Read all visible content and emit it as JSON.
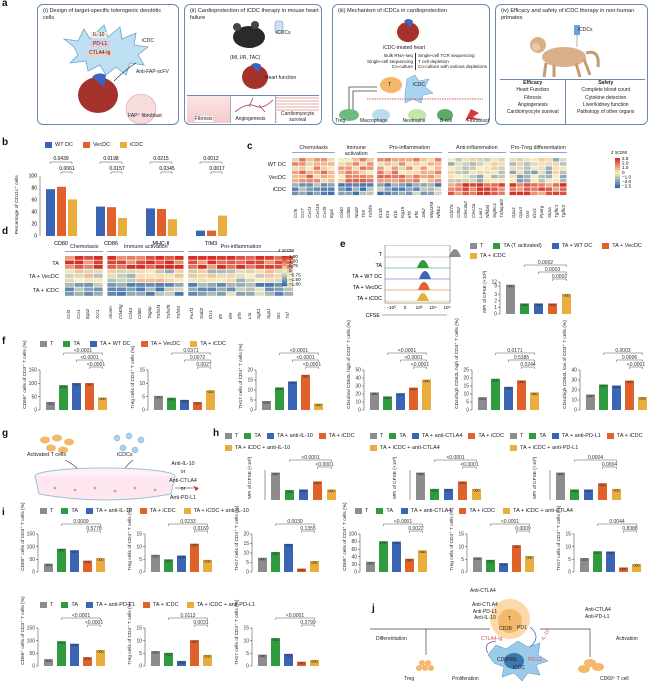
{
  "panels": {
    "a": {
      "label": "a",
      "i": {
        "title": "(i) Design of target-specific tolerogenic dendritic cells",
        "il10": "IL-10",
        "pdl1": "PD-L1",
        "ctla4": "CTLA4-Ig",
        "icdc": "iCDC",
        "scfv": "Anti-FAP-scFV",
        "fibroblast": "FAP⁺ fibroblast"
      },
      "ii": {
        "title": "(ii) Cardioprotection of iCDC therapy in mouse heart failure",
        "icdcs": "iCDCs",
        "models": "(MI, I/R, TAC)",
        "heart_function": "Heart function",
        "outcomes": [
          "Fibrosis",
          "Angiogenesis",
          "Cardiomyocyte survival"
        ]
      },
      "iii": {
        "title": "(iii) Mechanism of iCDCs in cardioprotection",
        "heart": "iCDC-treated heart",
        "methods_left": [
          "Bulk RNA-seq",
          "Single-cell sequencing",
          "Co-culture"
        ],
        "methods_right": [
          "Single-cell TCR sequencing",
          "T cell depletion",
          "Co-culture with various depletions"
        ],
        "t": "T",
        "icdc": "iCDC",
        "targets": [
          "Treg",
          "Macrophage",
          "Neutrophil",
          "B cell",
          "Fibroblast"
        ]
      },
      "iv": {
        "title": "(iv) Efficacy and safety of iCDC therapy in non-human primates",
        "icdcs": "iCDCs",
        "efficacy_head": "Efficacy",
        "efficacy": [
          "Heart Function",
          "Fibrosis",
          "Angiogenesis",
          "Cardiomyocyte survival"
        ],
        "safety_head": "Safety",
        "safety": [
          "Complete blood count",
          "Cytokine detection",
          "Liver/kidney function",
          "Pathology of other organs"
        ]
      }
    },
    "b": {
      "label": "b",
      "legend": [
        "WT DC",
        "VecDC",
        "iCDC"
      ],
      "ylabel": "Percentage of CD11c⁺ cells"
    },
    "c": {
      "label": "c",
      "groups": [
        "Chemotaxis",
        "Immune activation",
        "Pro-inflammation",
        "Anti-inflammation",
        "Pro-Treg differentiation"
      ],
      "rows": [
        "WT DC",
        "VecDC",
        "iCDC"
      ],
      "zscore": "z score",
      "scale": [
        "2.5",
        "2.0",
        "1.0",
        "0",
        "−1.0",
        "−2.0",
        "−2.5"
      ],
      "genes": [
        "Ccl5",
        "Ccr7",
        "Cxcl1",
        "Cxcl16",
        "Cxcl5",
        "Itgal",
        "Cd40",
        "Cd86",
        "Nod2",
        "Tlr9",
        "Tnfsf9",
        "Il12b",
        "Il15",
        "Il1b",
        "Isg15",
        "Irf5",
        "Irf8",
        "Jak2",
        "Map3k8",
        "Nfkb1",
        "Cd276",
        "Cd52",
        "Clec4a2",
        "Clec2a",
        "Lair1",
        "Nfkbid",
        "Siglec1",
        "Tnfaip8l2",
        "Gpx1",
        "Gpx3",
        "Gsr",
        "Il1rl1",
        "Pparg",
        "Sirpa",
        "Tgfbr1",
        "Tgfbr2"
      ]
    },
    "d": {
      "label": "d",
      "groups": [
        "Chemotaxis",
        "Immune activation",
        "Pro-inflammation"
      ],
      "rows": [
        "TA",
        "TA + VecDC",
        "TA + iCDC"
      ],
      "zscore": "z score",
      "scale": [
        "1.80",
        "1.50",
        "0.75",
        "0",
        "−0.75",
        "−1.50",
        "−1.80"
      ],
      "genes": [
        "Ccl3",
        "Ccr1",
        "Itga2",
        "Xcr1",
        "Alcam",
        "Cd40lg",
        "Cd44",
        "Cd80",
        "Tagap",
        "Tnfrsf4",
        "Tnfrsf9",
        "Tnfsf4",
        "Foxf1",
        "Gab2",
        "Il1r1",
        "Il5",
        "Il9r",
        "Irf5",
        "Lta",
        "Sgk1",
        "Spp1",
        "Src",
        "Tnf"
      ]
    },
    "e": {
      "label": "e",
      "rows": [
        "T",
        "TA",
        "TA + WT DC",
        "TA + VecDC",
        "TA + iCDC"
      ],
      "xaxis": "CFSE",
      "xticks": [
        "−10³",
        "0",
        "10³",
        "10⁴",
        "10⁵"
      ],
      "legend": [
        "T",
        "TA (T activated)",
        "TA + WT DC",
        "TA + VecDC",
        "TA + iCDC"
      ],
      "ylabel": "MFI of CFSE (×10³)"
    },
    "f": {
      "label": "f",
      "legend": [
        "T",
        "TA",
        "TA + WT DC",
        "TA + VecDC",
        "TA + iCDC"
      ]
    },
    "g": {
      "label": "g",
      "activated": "Activated T cells",
      "icdcs": "iCDCs",
      "antibodies": [
        "Anti-IL-10",
        "or",
        "Anti-CTLA4",
        "or",
        "Anti-PD-L1"
      ]
    },
    "h": {
      "label": "h",
      "legends": [
        [
          "T",
          "TA",
          "TA + anti-IL-10",
          "TA + iCDC",
          "TA + iCDC + anti-IL-10"
        ],
        [
          "T",
          "TA",
          "TA + anti-CTLA4",
          "TA + iCDC",
          "TA + iCDC + anti-CTLA4"
        ],
        [
          "T",
          "TA",
          "TA + anti-PD-L1",
          "TA + iCDC",
          "TA + iCDC + anti-PD-L1"
        ]
      ],
      "ylabel": "MFI of CFSE (×10³)"
    },
    "i": {
      "label": "i",
      "legends": [
        [
          "T",
          "TA",
          "TA + anti-IL-10",
          "TA + iCDC",
          "TA + iCDC + anti-IL-10"
        ],
        [
          "T",
          "TA",
          "TA + anti-CTLA4",
          "TA + iCDC",
          "TA + iCDC + anti-CTLA4"
        ],
        [
          "T",
          "TA",
          "TA + anti-PD-L1",
          "TA + iCDC",
          "TA + iCDC + anti-PD-L1"
        ]
      ]
    },
    "j": {
      "label": "j",
      "left_abs": [
        "Anti-CTLA4",
        "Anti-PD-L1",
        "Anti-IL-10"
      ],
      "right_abs": [
        "Anti-CTLA4",
        "Anti-PD-L1"
      ],
      "t": "T",
      "cd28": "CD28",
      "pd1": "PD1",
      "ctla4ig": "CTLA4-Ig",
      "il10": "IL-10",
      "pdl1": "PD-L1",
      "cd8086": "CD80/86",
      "icdc": "iCDC",
      "differentiation": "Differentiation",
      "activation": "Activation",
      "treg": "Treg",
      "proliferation": "Proliferation",
      "cd69": "CD69⁺ T cell"
    }
  },
  "colors": {
    "T": "#8c8c8c",
    "TA": "#2e9b3e",
    "WT": "#3a64b4",
    "Vec": "#e0622a",
    "iCDC": "#e8ad3c",
    "box": "#6b87b3"
  },
  "chart_data": [
    {
      "id": "b",
      "type": "bar",
      "title": "",
      "ylabel": "Percentage of CD11c⁺ cells",
      "ylim": [
        0,
        100
      ],
      "yticks": [
        0,
        20,
        40,
        60,
        80,
        100
      ],
      "categories": [
        "CD80",
        "CD86",
        "MHC-II",
        "TIM3"
      ],
      "series": [
        {
          "name": "WT DC",
          "values": [
            78,
            49,
            46,
            9
          ]
        },
        {
          "name": "VecDC",
          "values": [
            82,
            48,
            45,
            9
          ]
        },
        {
          "name": "iCDC",
          "values": [
            61,
            30,
            28,
            34
          ]
        }
      ],
      "pvalues": [
        [
          "0.0439",
          "0.0061"
        ],
        [
          "0.0198",
          "0.0157"
        ],
        [
          "0.0215",
          "0.0345"
        ],
        [
          "0.0012",
          "0.0017"
        ]
      ]
    },
    {
      "id": "c",
      "type": "heatmap",
      "rows": [
        "WT DC",
        "VecDC",
        "iCDC"
      ],
      "zrange": [
        -2.5,
        2.5
      ]
    },
    {
      "id": "d",
      "type": "heatmap",
      "rows": [
        "TA",
        "TA + VecDC",
        "TA + iCDC"
      ],
      "zrange": [
        -1.8,
        1.8
      ]
    },
    {
      "id": "e",
      "type": "bar",
      "ylabel": "MFI of CFSE (×10³)",
      "categories": [
        "T",
        "TA",
        "TA + WT DC",
        "TA + VecDC",
        "TA + iCDC"
      ],
      "values": [
        10,
        1.6,
        1.6,
        1.6,
        3.2
      ],
      "yticks": [
        0,
        1,
        2,
        3,
        9,
        12
      ],
      "pvalues": [
        "0.0002",
        "0.0003",
        "0.0002"
      ]
    },
    {
      "id": "f1",
      "type": "bar",
      "ylabel": "CD69⁺ cells of CD3⁺ T cells (%)",
      "ylim": [
        0,
        150
      ],
      "yticks": [
        0,
        50,
        100,
        150
      ],
      "categories": [
        "T",
        "TA",
        "TA + WT DC",
        "TA + VecDC",
        "TA + iCDC"
      ],
      "values": [
        30,
        93,
        101,
        101,
        47
      ],
      "pvalues": [
        "<0.0001",
        "<0.0001",
        "<0.0001"
      ]
    },
    {
      "id": "f2",
      "type": "bar",
      "ylabel": "Treg cells of CD4⁺ T cells (%)",
      "ylim": [
        0,
        15
      ],
      "yticks": [
        0,
        5,
        10,
        15
      ],
      "categories": [
        "T",
        "TA",
        "TA + WT DC",
        "TA + VecDC",
        "TA + iCDC"
      ],
      "values": [
        5.3,
        4.6,
        3.8,
        3.0,
        7.4
      ],
      "pvalues": [
        "0.0371",
        "0.0072",
        "0.0027"
      ]
    },
    {
      "id": "f3",
      "type": "bar",
      "ylabel": "TH17 cells of CD4⁺ T cells (%)",
      "ylim": [
        0,
        20
      ],
      "yticks": [
        0,
        5,
        10,
        15,
        20
      ],
      "categories": [
        "T",
        "TA",
        "TA + WT DC",
        "TA + VecDC",
        "TA + iCDC"
      ],
      "values": [
        4.5,
        11.3,
        14.3,
        17.6,
        3.2
      ],
      "pvalues": [
        "<0.0001",
        "<0.0001",
        "<0.0001"
      ]
    },
    {
      "id": "f4",
      "type": "bar",
      "ylabel": "CD44low CD62L high of CD3⁺ T cells (%)",
      "ylim": [
        0,
        50
      ],
      "yticks": [
        0,
        10,
        20,
        30,
        40,
        50
      ],
      "categories": [
        "T",
        "TA",
        "TA + WT DC",
        "TA + VecDC",
        "TA + iCDC"
      ],
      "values": [
        22,
        17,
        21,
        28,
        38
      ],
      "pvalues": [
        "<0.0001",
        "<0.0001",
        "<0.0001"
      ]
    },
    {
      "id": "f5",
      "type": "bar",
      "ylabel": "CD44high CD62L high of CD3⁺ T cells (%)",
      "ylim": [
        0,
        25
      ],
      "yticks": [
        0,
        5,
        10,
        15,
        20,
        25
      ],
      "categories": [
        "T",
        "TA",
        "TA + WT DC",
        "TA + VecDC",
        "TA + iCDC"
      ],
      "values": [
        8,
        19.5,
        14.5,
        18.5,
        11
      ],
      "pvalues": [
        "0.0171",
        "0.5385",
        "0.0244"
      ]
    },
    {
      "id": "f6",
      "type": "bar",
      "ylabel": "CD44high CD62L low of CD3⁺ T cells (%)",
      "ylim": [
        0,
        40
      ],
      "yticks": [
        0,
        10,
        20,
        30,
        40
      ],
      "categories": [
        "T",
        "TA",
        "TA + WT DC",
        "TA + VecDC",
        "TA + iCDC"
      ],
      "values": [
        15.5,
        25.5,
        24.5,
        29.5,
        13
      ],
      "pvalues": [
        "0.0003",
        "0.0006",
        "<0.0001"
      ]
    },
    {
      "id": "h1",
      "type": "bar",
      "ylabel": "MFI of CFSE (×10³)",
      "categories": [
        "T",
        "TA",
        "TA + anti-IL-10",
        "TA + iCDC",
        "TA + iCDC + anti-IL-10"
      ],
      "values": [
        10,
        1.6,
        1.7,
        3.0,
        1.7
      ],
      "pvalues": [
        "<0.0001",
        "<0.0001"
      ]
    },
    {
      "id": "h2",
      "type": "bar",
      "ylabel": "MFI of CFSE (×10³)",
      "categories": [
        "T",
        "TA",
        "TA + anti-CTLA4",
        "TA + iCDC",
        "TA + iCDC + anti-CTLA4"
      ],
      "values": [
        10,
        1.8,
        1.8,
        3.0,
        1.8
      ],
      "pvalues": [
        "<0.0001",
        "<0.0001"
      ]
    },
    {
      "id": "h3",
      "type": "bar",
      "ylabel": "MFI of CFSE (×10³)",
      "categories": [
        "T",
        "TA",
        "TA + anti-PD-L1",
        "TA + iCDC",
        "TA + iCDC + anti-PD-L1"
      ],
      "values": [
        10,
        1.7,
        1.7,
        2.7,
        1.8
      ],
      "pvalues": [
        "0.0004",
        "0.0004"
      ]
    },
    {
      "id": "i1",
      "type": "bar",
      "ylabel": "CD69⁺ cells of CD3⁺ T cells (%)",
      "ylim": [
        0,
        150
      ],
      "yticks": [
        0,
        50,
        100,
        150
      ],
      "categories": [
        "T",
        "TA",
        "TA + anti-IL-10",
        "TA + iCDC",
        "TA + iCDC + anti-IL-10"
      ],
      "values": [
        33,
        92,
        86,
        45,
        55
      ],
      "pvalues": [
        "0.0009",
        "0.5778"
      ]
    },
    {
      "id": "i2",
      "type": "bar",
      "ylabel": "Treg cells of CD4⁺ T cells (%)",
      "ylim": [
        0,
        15
      ],
      "yticks": [
        0,
        5,
        10,
        15
      ],
      "categories": [
        "T",
        "TA",
        "TA + anti-IL-10",
        "TA + iCDC",
        "TA + iCDC + anti-IL-10"
      ],
      "values": [
        6.8,
        5.0,
        6.5,
        11.2,
        4.8
      ],
      "pvalues": [
        "0.0233",
        "0.0169"
      ]
    },
    {
      "id": "i3",
      "type": "bar",
      "ylabel": "TH17 cells of CD4⁺ T cells (%)",
      "ylim": [
        0,
        20
      ],
      "yticks": [
        0,
        5,
        10,
        15,
        20
      ],
      "categories": [
        "T",
        "TA",
        "TA + anti-IL-10",
        "TA + iCDC",
        "TA + iCDC + anti-IL-10"
      ],
      "values": [
        7.5,
        10.5,
        14.8,
        1.8,
        5.8
      ],
      "pvalues": [
        "0.0030",
        "0.1355"
      ]
    },
    {
      "id": "i4",
      "type": "bar",
      "ylabel": "CD69⁺ cells of CD3⁺ T cells (%)",
      "ylim": [
        0,
        100
      ],
      "yticks": [
        0,
        20,
        40,
        60,
        80,
        100
      ],
      "categories": [
        "T",
        "TA",
        "TA + anti-CTLA4",
        "TA + iCDC",
        "TA + iCDC + anti-CTLA4"
      ],
      "values": [
        27,
        81,
        80,
        35,
        57
      ],
      "pvalues": [
        "<0.0001",
        "0.0022"
      ]
    },
    {
      "id": "i5",
      "type": "bar",
      "ylabel": "Treg cells of CD4⁺ T cells (%)",
      "ylim": [
        0,
        15
      ],
      "yticks": [
        0,
        5,
        10,
        15
      ],
      "categories": [
        "T",
        "TA",
        "TA + anti-CTLA4",
        "TA + iCDC",
        "TA + iCDC + anti-CTLA4"
      ],
      "values": [
        5.8,
        4.8,
        3.5,
        10.6,
        6.3
      ],
      "pvalues": [
        "<0.0001",
        "0.0009"
      ]
    },
    {
      "id": "i6",
      "type": "bar",
      "ylabel": "TH17 cells of CD4⁺ T cells (%)",
      "ylim": [
        0,
        15
      ],
      "yticks": [
        0,
        5,
        10,
        15
      ],
      "categories": [
        "T",
        "TA",
        "TA + anti-CTLA4",
        "TA + iCDC",
        "TA + iCDC + anti-CTLA4"
      ],
      "values": [
        5.5,
        8.2,
        8.1,
        1.8,
        3.2
      ],
      "pvalues": [
        "0.0044",
        "0.8388"
      ]
    },
    {
      "id": "i7",
      "type": "bar",
      "ylabel": "CD69⁺ cells of CD3⁺ T cells (%)",
      "ylim": [
        0,
        150
      ],
      "yticks": [
        0,
        50,
        100,
        150
      ],
      "categories": [
        "T",
        "TA",
        "TA + anti-PD-L1",
        "TA + iCDC",
        "TA + iCDC + anti-PD-L1"
      ],
      "values": [
        27,
        98,
        88,
        35,
        63
      ],
      "pvalues": [
        "<0.0001",
        "<0.0001"
      ]
    },
    {
      "id": "i8",
      "type": "bar",
      "ylabel": "Treg cells of CD4⁺ T cells (%)",
      "ylim": [
        0,
        15
      ],
      "yticks": [
        0,
        5,
        10,
        15
      ],
      "categories": [
        "T",
        "TA",
        "TA + anti-PD-L1",
        "TA + iCDC",
        "TA + iCDC + anti-PD-L1"
      ],
      "values": [
        5.9,
        5.2,
        2.0,
        10.2,
        4.4
      ],
      "pvalues": [
        "0.0113",
        "0.0031"
      ]
    },
    {
      "id": "i9",
      "type": "bar",
      "ylabel": "TH17 cells of CD4⁺ T cells (%)",
      "ylim": [
        0,
        15
      ],
      "yticks": [
        0,
        5,
        10,
        15
      ],
      "categories": [
        "T",
        "TA",
        "TA + anti-PD-L1",
        "TA + iCDC",
        "TA + iCDC + anti-PD-L1"
      ],
      "values": [
        4.5,
        11.0,
        4.8,
        1.7,
        2.4
      ],
      "pvalues": [
        "<0.0001",
        "0.2799"
      ]
    }
  ]
}
